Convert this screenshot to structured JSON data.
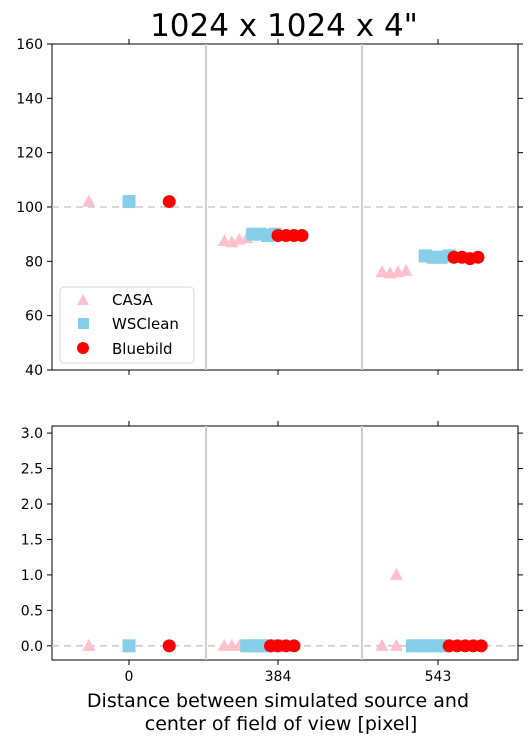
{
  "chart_data": {
    "type": "scatter",
    "title": "1024 x 1024 x 4\"",
    "xlabel_lines": [
      "Distance between simulated source and",
      "center of field of view [pixel]"
    ],
    "x_tick_labels": [
      "0",
      "384",
      "543"
    ],
    "legend": {
      "position": "lower-left",
      "entries": [
        {
          "name": "CASA",
          "marker": "triangle",
          "color": "#ffc0cb"
        },
        {
          "name": "WSClean",
          "marker": "square",
          "color": "#87ceeb"
        },
        {
          "name": "Bluebild",
          "marker": "circle",
          "color": "#ff0000"
        }
      ]
    },
    "panels": [
      {
        "id": "top",
        "ylim": [
          40,
          160
        ],
        "yticks": [
          40,
          60,
          80,
          100,
          120,
          140,
          160
        ],
        "reference_line": 100,
        "series": [
          {
            "name": "CASA",
            "points": [
              [
                -0.27,
                102
              ],
              [
                0.64,
                87.5
              ],
              [
                0.69,
                87
              ],
              [
                0.74,
                88
              ],
              [
                0.79,
                88.5
              ],
              [
                1.65,
                76
              ],
              [
                1.7,
                75.5
              ],
              [
                1.75,
                76
              ],
              [
                1.8,
                76.5
              ]
            ]
          },
          {
            "name": "WSClean",
            "points": [
              [
                0,
                102
              ],
              [
                0.83,
                90
              ],
              [
                0.88,
                90
              ],
              [
                0.93,
                89.5
              ],
              [
                0.98,
                90
              ],
              [
                1.92,
                82
              ],
              [
                1.97,
                81.5
              ],
              [
                2.02,
                81.5
              ],
              [
                2.07,
                82
              ]
            ]
          },
          {
            "name": "Bluebild",
            "points": [
              [
                0.27,
                102
              ],
              [
                1.0,
                89.5
              ],
              [
                1.05,
                89.5
              ],
              [
                1.1,
                89.5
              ],
              [
                1.15,
                89.5
              ],
              [
                2.1,
                81.5
              ],
              [
                2.15,
                81.5
              ],
              [
                2.2,
                81
              ],
              [
                2.25,
                81.5
              ]
            ]
          }
        ]
      },
      {
        "id": "bottom",
        "ylim": [
          -0.2,
          3.1
        ],
        "yticks": [
          0.0,
          0.5,
          1.0,
          1.5,
          2.0,
          2.5,
          3.0
        ],
        "ytick_labels": [
          "0.0",
          "0.5",
          "1.0",
          "1.5",
          "2.0",
          "2.5",
          "3.0"
        ],
        "reference_line": 0,
        "series": [
          {
            "name": "CASA",
            "points": [
              [
                -0.27,
                0
              ],
              [
                0.64,
                0
              ],
              [
                0.69,
                0
              ],
              [
                0.74,
                0
              ],
              [
                1.65,
                0
              ],
              [
                1.74,
                1.0
              ],
              [
                1.74,
                0
              ]
            ]
          },
          {
            "name": "WSClean",
            "points": [
              [
                0,
                0
              ],
              [
                0.79,
                0
              ],
              [
                0.84,
                0
              ],
              [
                0.89,
                0
              ],
              [
                0.94,
                0
              ],
              [
                0.99,
                0
              ],
              [
                1.84,
                0
              ],
              [
                1.89,
                0
              ],
              [
                1.94,
                0
              ],
              [
                1.99,
                0
              ],
              [
                2.04,
                0
              ]
            ]
          },
          {
            "name": "Bluebild",
            "points": [
              [
                0.27,
                0
              ],
              [
                0.95,
                0
              ],
              [
                1.0,
                0
              ],
              [
                1.05,
                0
              ],
              [
                1.1,
                0
              ],
              [
                2.07,
                0
              ],
              [
                2.12,
                0
              ],
              [
                2.17,
                0
              ],
              [
                2.22,
                0
              ],
              [
                2.27,
                0
              ]
            ]
          }
        ]
      }
    ]
  }
}
